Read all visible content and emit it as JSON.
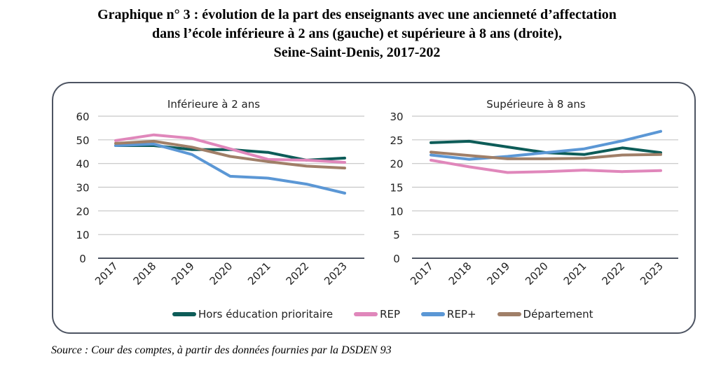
{
  "title_lines": [
    "Graphique n° 3 : évolution de la part des enseignants avec une ancienneté d’affectation",
    "dans l’école inférieure à 2 ans (gauche) et supérieure à 8 ans (droite),",
    "Seine-Saint-Denis, 2017-202"
  ],
  "source": "Source : Cour des comptes, à partir des données fournies par la DSDEN 93",
  "colors": {
    "Hors éducation prioritaire": "#0d5c58",
    "REP": "#e087bb",
    "REP+": "#5b97d5",
    "Département": "#a07f68"
  },
  "legend": [
    {
      "label": "Hors éducation prioritaire",
      "color": "#0d5c58"
    },
    {
      "label": "REP",
      "color": "#e087bb"
    },
    {
      "label": "REP+",
      "color": "#5b97d5"
    },
    {
      "label": "Département",
      "color": "#a07f68"
    }
  ],
  "chart_data": [
    {
      "type": "line",
      "title": "Inférieure à 2 ans",
      "xlabel": "",
      "ylabel": "",
      "categories": [
        "2017",
        "2018",
        "2019",
        "2020",
        "2021",
        "2022",
        "2023"
      ],
      "ylim": [
        0,
        60
      ],
      "yticks": [
        0,
        10,
        20,
        30,
        40,
        50,
        60
      ],
      "grid": true,
      "legend": "bottom",
      "series": [
        {
          "name": "Hors éducation prioritaire",
          "values": [
            47.6,
            47.6,
            45.9,
            45.9,
            44.7,
            41.4,
            42.3
          ]
        },
        {
          "name": "REP",
          "values": [
            49.7,
            52.1,
            50.6,
            46.2,
            41.7,
            41.4,
            40.5
          ]
        },
        {
          "name": "REP+",
          "values": [
            47.6,
            48.2,
            43.8,
            34.6,
            33.8,
            31.3,
            27.5
          ]
        },
        {
          "name": "Département",
          "values": [
            48.5,
            49.4,
            46.9,
            43.0,
            40.8,
            38.9,
            38.1
          ]
        }
      ]
    },
    {
      "type": "line",
      "title": "Supérieure à 8 ans",
      "xlabel": "",
      "ylabel": "",
      "categories": [
        "2017",
        "2018",
        "2019",
        "2020",
        "2021",
        "2022",
        "2023"
      ],
      "ylim": [
        0,
        30
      ],
      "yticks": [
        0,
        5,
        10,
        15,
        20,
        25,
        30
      ],
      "grid": true,
      "legend": "bottom",
      "series": [
        {
          "name": "Hors éducation prioritaire",
          "values": [
            24.4,
            24.7,
            23.5,
            22.3,
            21.9,
            23.3,
            22.3
          ]
        },
        {
          "name": "REP",
          "values": [
            20.7,
            19.3,
            18.1,
            18.3,
            18.6,
            18.3,
            18.5
          ]
        },
        {
          "name": "REP+",
          "values": [
            21.8,
            20.9,
            21.5,
            22.3,
            23.1,
            24.8,
            26.8
          ]
        },
        {
          "name": "Département",
          "values": [
            22.4,
            21.7,
            21.0,
            21.0,
            21.1,
            21.8,
            21.9
          ]
        }
      ]
    }
  ]
}
